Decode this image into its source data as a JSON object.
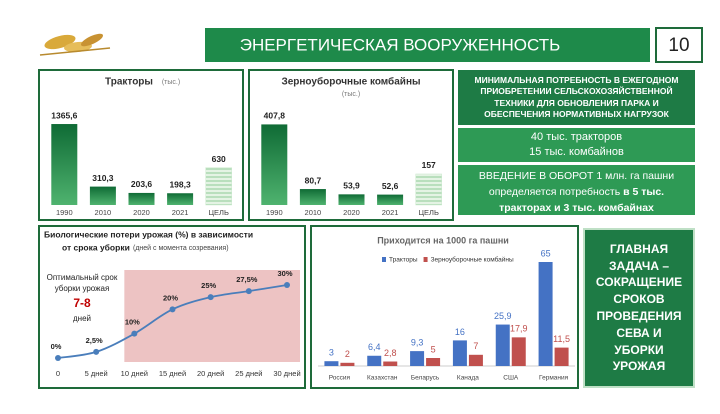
{
  "header": {
    "title": "ЭНЕРГЕТИЧЕСКАЯ ВООРУЖЕННОСТЬ",
    "page_number": "10"
  },
  "chart_data": [
    {
      "type": "bar",
      "title": "Тракторы",
      "unit": "(тыс.)",
      "categories": [
        "1990",
        "2010",
        "2020",
        "2021",
        "ЦЕЛЬ"
      ],
      "values": [
        1365.6,
        310.3,
        203.6,
        198.3,
        630
      ],
      "value_labels": [
        "1365,6",
        "310,3",
        "203,6",
        "198,3",
        "630"
      ],
      "colors": [
        "#1e8449",
        "#1e8449",
        "#1e8449",
        "#1e8449",
        "#cde9cf"
      ],
      "ylim": [
        0,
        1400
      ]
    },
    {
      "type": "bar",
      "title": "Зерноуборочные комбайны",
      "unit": "(тыс.)",
      "categories": [
        "1990",
        "2010",
        "2020",
        "2021",
        "ЦЕЛЬ"
      ],
      "values": [
        407.8,
        80.7,
        53.9,
        52.6,
        157
      ],
      "value_labels": [
        "407,8",
        "80,7",
        "53,9",
        "52,6",
        "157"
      ],
      "colors": [
        "#1e8449",
        "#1e8449",
        "#1e8449",
        "#1e8449",
        "#cde9cf"
      ],
      "ylim": [
        0,
        420
      ]
    },
    {
      "type": "line",
      "title": "Биологические потери урожая (%) в зависимости",
      "title2": "от срока уборки",
      "subtitle": "(дней с момента созревания)",
      "categories": [
        "0",
        "5 дней",
        "10 дней",
        "15 дней",
        "20 дней",
        "25 дней",
        "30 дней"
      ],
      "values": [
        0,
        2.5,
        10,
        20,
        25,
        27.5,
        30
      ],
      "value_labels": [
        "0%",
        "2,5%",
        "10%",
        "20%",
        "25%",
        "27,5%",
        "30%"
      ],
      "color": "#4a7ebb",
      "ylim": [
        0,
        30
      ],
      "annotation": {
        "lines": [
          "Оптимальный срок",
          "уборки урожая"
        ],
        "highlight": "7-8",
        "unit": "дней"
      }
    },
    {
      "type": "grouped_bar",
      "title": "Приходится на 1000 га пашни",
      "categories": [
        "Россия",
        "Казахстан",
        "Беларусь",
        "Канада",
        "США",
        "Германия"
      ],
      "series": [
        {
          "name": "Тракторы",
          "color": "#4472c4",
          "values": [
            3,
            6.4,
            9.3,
            16,
            25.9,
            65
          ],
          "value_labels": [
            "3",
            "6,4",
            "9,3",
            "16",
            "25,9",
            "65"
          ]
        },
        {
          "name": "Зерноуборочные комбайны",
          "color": "#c0504d",
          "values": [
            2,
            2.8,
            5,
            7,
            17.9,
            11.5
          ],
          "value_labels": [
            "2",
            "2,8",
            "5",
            "7",
            "17,9",
            "11,5"
          ]
        }
      ],
      "ylim": [
        0,
        65
      ],
      "legend": "top"
    }
  ],
  "boxes": {
    "need": "МИНИМАЛЬНАЯ ПОТРЕБНОСТЬ В ЕЖЕГОДНОМ ПРИОБРЕТЕНИИ СЕЛЬСКОХОЗЯЙСТВЕННОЙ ТЕХНИКИ ДЛЯ ОБНОВЛЕНИЯ ПАРКА И ОБЕСПЕЧЕНИЯ НОРМАТИВНЫХ НАГРУЗОК",
    "amounts": [
      "40 тыс. тракторов",
      "15 тыс. комбайнов"
    ],
    "intro": "ВВЕДЕНИЕ В ОБОРОТ 1 млн. га пашни определяется потребность",
    "intro_bold": "в 5 тыс. тракторах и 3 тыс. комбайнах",
    "task": "ГЛАВНАЯ ЗАДАЧА – СОКРАЩЕНИЕ СРОКОВ ПРОВЕДЕНИЯ СЕВА И УБОРКИ УРОЖАЯ"
  }
}
